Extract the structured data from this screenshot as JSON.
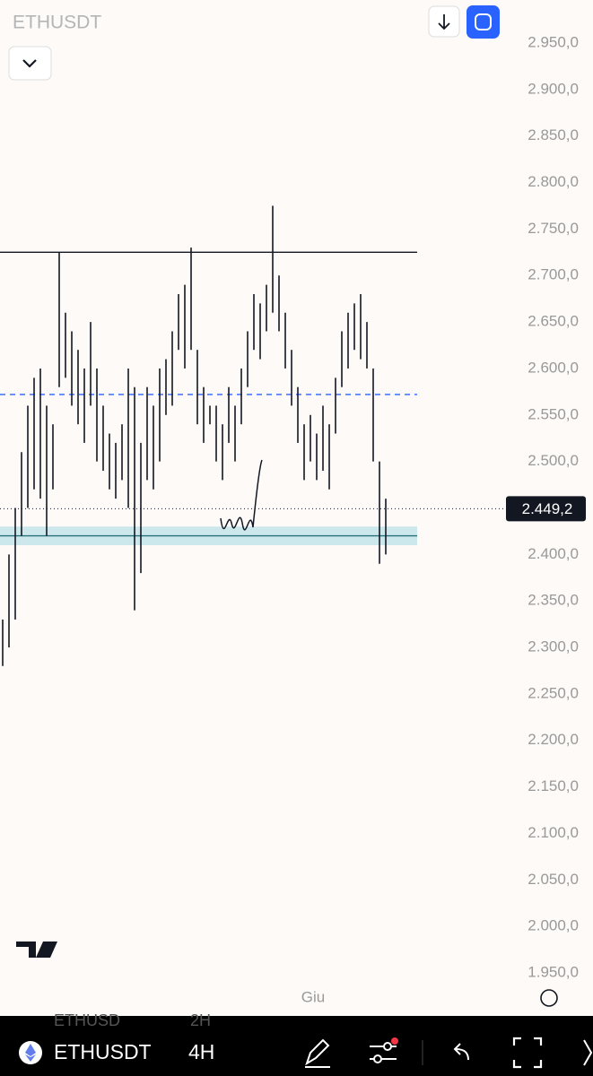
{
  "ui": {
    "symbol_top": "ETHUSDT",
    "bottom_symbol": "ETHUSDT",
    "bottom_interval": "4H",
    "ghost_symbol": "ETHUSD",
    "ghost_interval": "2H"
  },
  "chart_data": {
    "type": "ohlc",
    "x_label": "Giu",
    "color": "#131722",
    "highs": [
      2330,
      2400,
      2450,
      2510,
      2560,
      2590,
      2600,
      2560,
      2540,
      2725,
      2660,
      2640,
      2620,
      2600,
      2650,
      2600,
      2560,
      2530,
      2520,
      2540,
      2600,
      2580,
      2520,
      2580,
      2560,
      2600,
      2610,
      2640,
      2680,
      2690,
      2730,
      2620,
      2580,
      2560,
      2560,
      2540,
      2580,
      2560,
      2600,
      2640,
      2680,
      2670,
      2690,
      2775,
      2700,
      2660,
      2620,
      2580,
      2540,
      2550,
      2530,
      2560,
      2540,
      2590,
      2640,
      2660,
      2670,
      2680,
      2650,
      2600,
      2500,
      2460
    ],
    "lows": [
      2280,
      2300,
      2330,
      2420,
      2450,
      2470,
      2460,
      2420,
      2470,
      2580,
      2590,
      2560,
      2540,
      2520,
      2560,
      2500,
      2490,
      2470,
      2460,
      2480,
      2450,
      2340,
      2380,
      2480,
      2470,
      2500,
      2550,
      2560,
      2620,
      2600,
      2620,
      2540,
      2520,
      2540,
      2500,
      2480,
      2520,
      2500,
      2540,
      2580,
      2620,
      2610,
      2640,
      2660,
      2640,
      2600,
      2560,
      2520,
      2480,
      2500,
      2480,
      2490,
      2470,
      2530,
      2580,
      2600,
      2620,
      2610,
      2600,
      2500,
      2390,
      2400
    ],
    "ylim": [
      1950,
      2950
    ],
    "yticks": [
      {
        "value": 2950,
        "label": "2.950,0"
      },
      {
        "value": 2900,
        "label": "2.900,0"
      },
      {
        "value": 2850,
        "label": "2.850,0"
      },
      {
        "value": 2800,
        "label": "2.800,0"
      },
      {
        "value": 2750,
        "label": "2.750,0"
      },
      {
        "value": 2700,
        "label": "2.700,0"
      },
      {
        "value": 2650,
        "label": "2.650,0"
      },
      {
        "value": 2600,
        "label": "2.600,0"
      },
      {
        "value": 2550,
        "label": "2.550,0"
      },
      {
        "value": 2500,
        "label": "2.500,0"
      },
      {
        "value": 2450,
        "label": "2.450,0"
      },
      {
        "value": 2400,
        "label": "2.400,0"
      },
      {
        "value": 2350,
        "label": "2.350,0"
      },
      {
        "value": 2300,
        "label": "2.300,0"
      },
      {
        "value": 2250,
        "label": "2.250,0"
      },
      {
        "value": 2200,
        "label": "2.200,0"
      },
      {
        "value": 2150,
        "label": "2.150,0"
      },
      {
        "value": 2100,
        "label": "2.100,0"
      },
      {
        "value": 2050,
        "label": "2.050,0"
      },
      {
        "value": 2000,
        "label": "2.000,0"
      },
      {
        "value": 1950,
        "label": "1.950,0"
      }
    ],
    "hlines": [
      {
        "value": 2725,
        "color": "#131722",
        "dashed": false
      },
      {
        "value": 2572,
        "color": "#2962ff",
        "dashed": true
      },
      {
        "value": 2420,
        "color": "#26707a",
        "dashed": false
      }
    ],
    "support_band": [
      2410,
      2430
    ],
    "band_color": "#cde8ec",
    "price_line": {
      "value": 2449.2,
      "label": "2.449,2"
    }
  }
}
